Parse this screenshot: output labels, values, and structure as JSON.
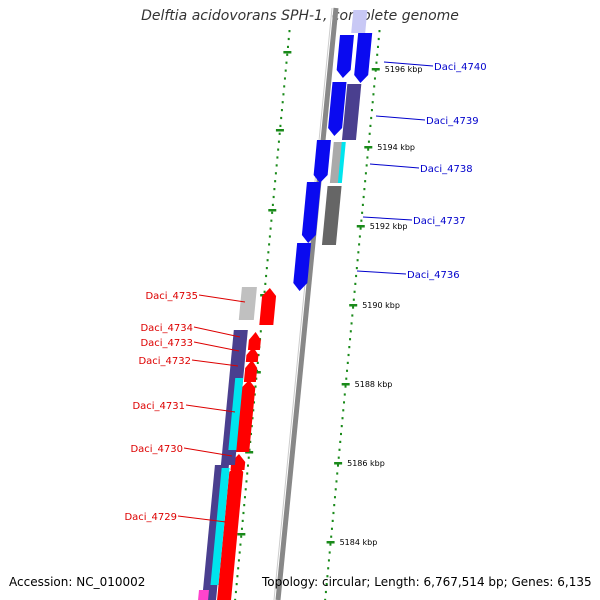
{
  "header": {
    "title": "Delftia acidovorans SPH-1, complete genome"
  },
  "footer": {
    "accession": "Accession: NC_010002",
    "summary": "Topology: circular; Length: 6,767,514 bp; Genes: 6,135"
  },
  "tick_labels": [
    {
      "text": "5196 kbp"
    },
    {
      "text": "5194 kbp"
    },
    {
      "text": "5192 kbp"
    },
    {
      "text": "5190 kbp"
    },
    {
      "text": "5188 kbp"
    },
    {
      "text": "5186 kbp"
    },
    {
      "text": "5184 kbp"
    }
  ],
  "forward_genes": [
    {
      "label": "Daci_4740",
      "color": "#0000cc"
    },
    {
      "label": "Daci_4739",
      "color": "#0000cc"
    },
    {
      "label": "Daci_4738",
      "color": "#0000cc"
    },
    {
      "label": "Daci_4737",
      "color": "#0000cc"
    },
    {
      "label": "Daci_4736",
      "color": "#0000cc"
    }
  ],
  "reverse_genes": [
    {
      "label": "Daci_4735",
      "color": "#dd0000"
    },
    {
      "label": "Daci_4734",
      "color": "#dd0000"
    },
    {
      "label": "Daci_4733",
      "color": "#dd0000"
    },
    {
      "label": "Daci_4732",
      "color": "#dd0000"
    },
    {
      "label": "Daci_4731",
      "color": "#dd0000"
    },
    {
      "label": "Daci_4730",
      "color": "#dd0000"
    },
    {
      "label": "Daci_4729",
      "color": "#dd0000"
    }
  ],
  "colors": {
    "forward_cds": "#0a0af0",
    "reverse_cds": "#ff0000",
    "feature_purple": "#4a3f8f",
    "feature_cyan": "#00e5ee",
    "feature_gray": "#aaaaaa",
    "backbone": "#888888",
    "tick_marks": "#1a8a1a"
  }
}
